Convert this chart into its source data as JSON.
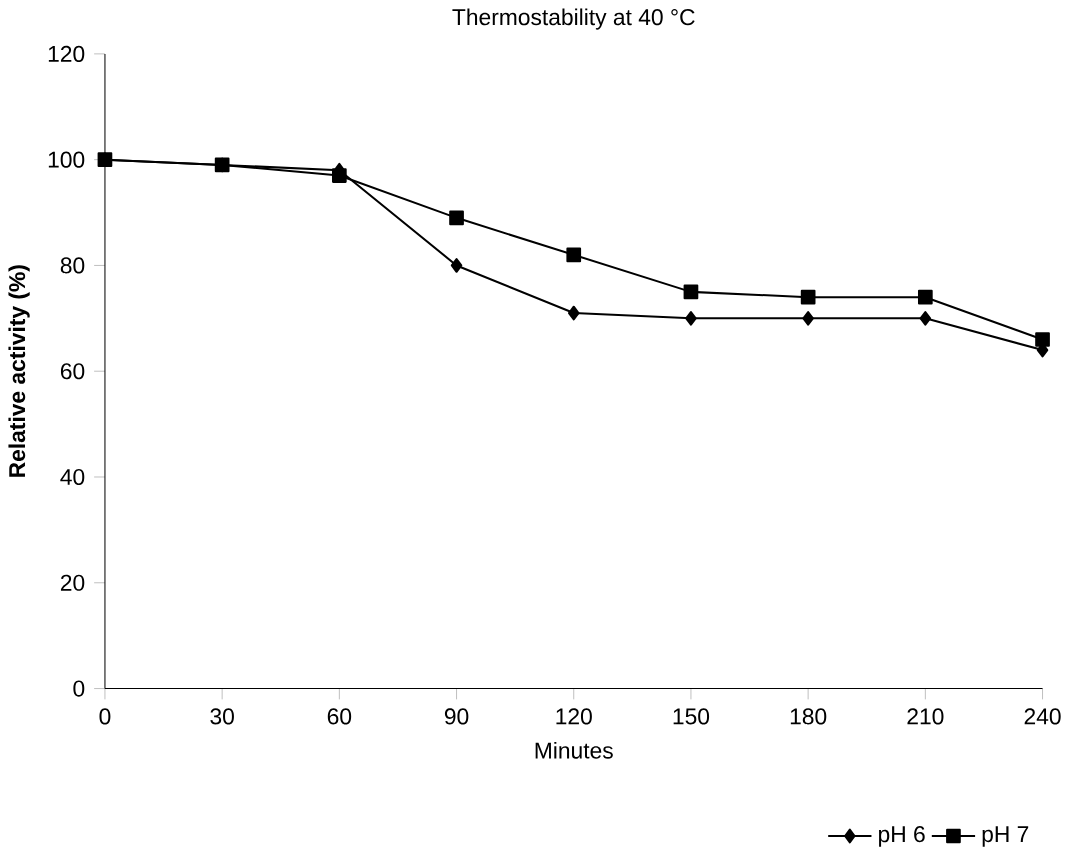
{
  "chart_data": {
    "type": "line",
    "title": "Thermostability at 40 °C",
    "xlabel": "Minutes",
    "ylabel": "Relative activity (%)",
    "categories": [
      "0",
      "30",
      "60",
      "90",
      "120",
      "150",
      "180",
      "210",
      "240"
    ],
    "series": [
      {
        "name": "pH 6",
        "color": "#000000",
        "marker": "diamond",
        "values": [
          100,
          99,
          98,
          80,
          71,
          70,
          70,
          70,
          64
        ]
      },
      {
        "name": "pH 7",
        "color": "#000000",
        "marker": "square",
        "values": [
          100,
          99,
          97,
          89,
          82,
          75,
          74,
          74,
          66
        ]
      }
    ],
    "ylim": [
      0,
      120
    ],
    "yticks": [
      0,
      20,
      40,
      60,
      80,
      100,
      120
    ],
    "legend": "bottom right",
    "grid": false
  }
}
